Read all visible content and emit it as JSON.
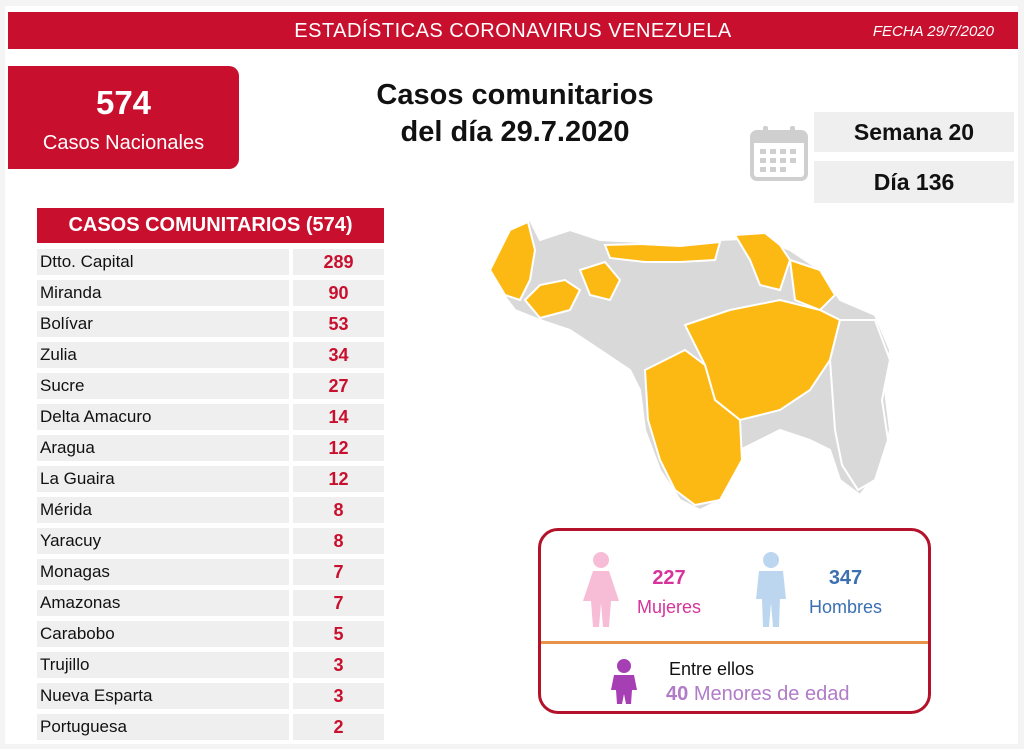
{
  "header": {
    "title": "ESTADÍSTICAS CORONAVIRUS VENEZUELA",
    "date": "FECHA 29/7/2020"
  },
  "national": {
    "count": "574",
    "label": "Casos Nacionales"
  },
  "heading": {
    "line1": "Casos comunitarios",
    "line2": "del día 29.7.2020"
  },
  "calendar": {
    "week": "Semana 20",
    "day": "Día 136",
    "icon": "calendar-icon"
  },
  "table": {
    "title": "CASOS COMUNITARIOS (574)",
    "rows": [
      {
        "state": "Dtto. Capital",
        "cases": "289"
      },
      {
        "state": "Miranda",
        "cases": "90"
      },
      {
        "state": "Bolívar",
        "cases": "53"
      },
      {
        "state": "Zulia",
        "cases": "34"
      },
      {
        "state": "Sucre",
        "cases": "27"
      },
      {
        "state": "Delta Amacuro",
        "cases": "14"
      },
      {
        "state": "Aragua",
        "cases": "12"
      },
      {
        "state": "La Guaira",
        "cases": "12"
      },
      {
        "state": "Mérida",
        "cases": "8"
      },
      {
        "state": "Yaracuy",
        "cases": "8"
      },
      {
        "state": "Monagas",
        "cases": "7"
      },
      {
        "state": "Amazonas",
        "cases": "7"
      },
      {
        "state": "Carabobo",
        "cases": "5"
      },
      {
        "state": "Trujillo",
        "cases": "3"
      },
      {
        "state": "Nueva Esparta",
        "cases": "3"
      },
      {
        "state": "Portuguesa",
        "cases": "2"
      }
    ]
  },
  "gender": {
    "women_count": "227",
    "women_label": "Mujeres",
    "men_count": "347",
    "men_label": "Hombres",
    "among": "Entre ellos",
    "minors_count": "40",
    "minors_label": "Menores de edad"
  },
  "colors": {
    "accent": "#c8102e",
    "map_affected": "#fdb913",
    "map_other": "#d9d9d9",
    "women": "#d6339b",
    "men": "#3b6fb0",
    "minors": "#b07bc7"
  }
}
